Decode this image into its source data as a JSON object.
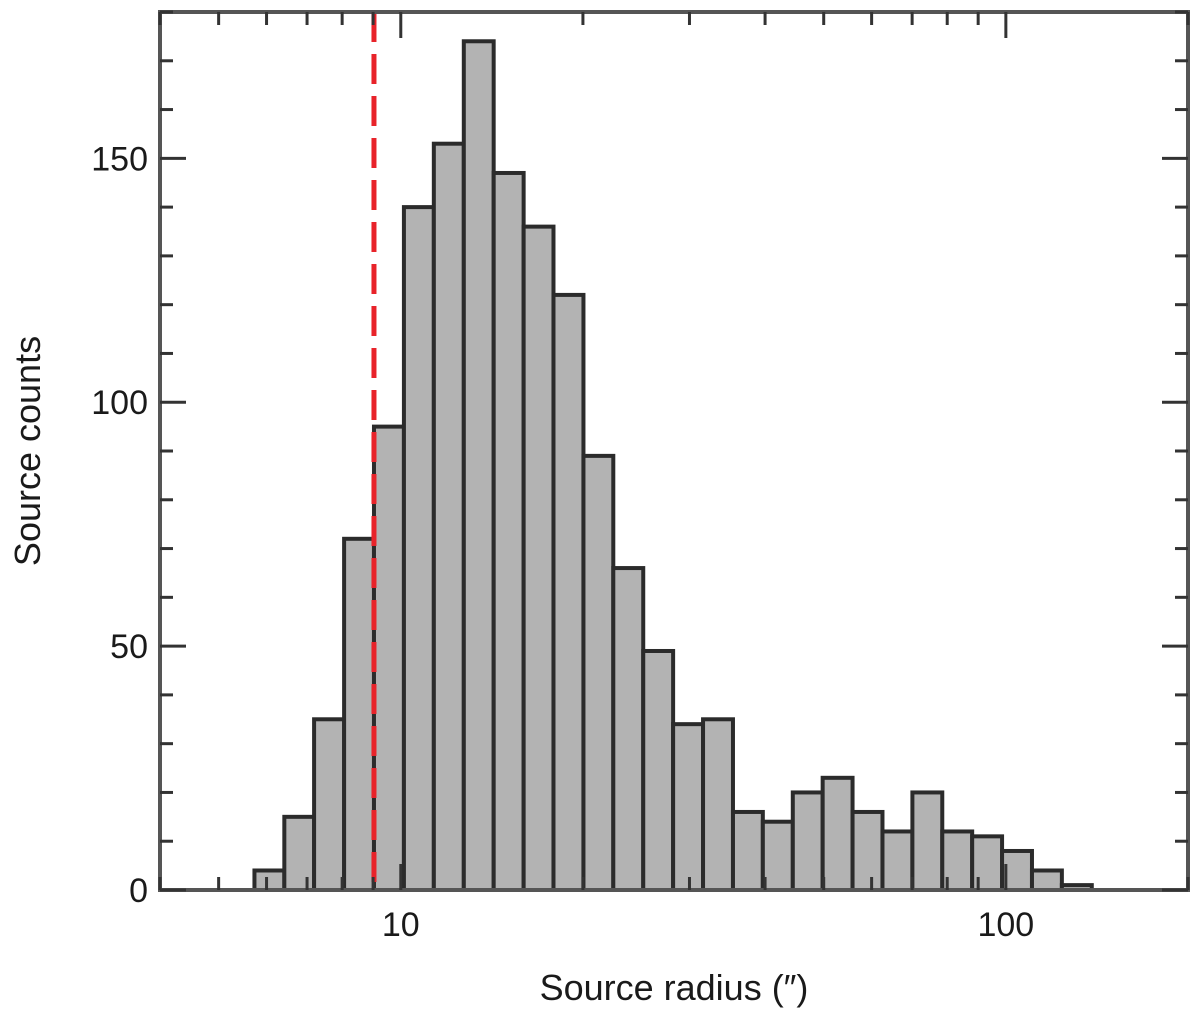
{
  "chart_data": {
    "type": "bar",
    "title": "",
    "xlabel": "Source radius (″)",
    "ylabel": "Source counts",
    "x_scale": "log",
    "xlim": [
      4.0,
      200.0
    ],
    "ylim": [
      0,
      180
    ],
    "x_ticks": [
      {
        "value": 10,
        "label": "10"
      },
      {
        "value": 100,
        "label": "100"
      }
    ],
    "y_ticks": [
      {
        "value": 0,
        "label": "0"
      },
      {
        "value": 50,
        "label": "50"
      },
      {
        "value": 100,
        "label": "100"
      },
      {
        "value": 150,
        "label": "150"
      }
    ],
    "bin_edges": [
      5.73,
      6.42,
      7.19,
      8.06,
      9.03,
      10.12,
      11.34,
      12.71,
      14.24,
      15.96,
      17.88,
      20.04,
      22.45,
      25.16,
      28.19,
      31.59,
      35.4,
      39.66,
      44.45,
      49.8,
      55.8,
      62.53,
      70.07,
      78.51,
      87.97,
      98.57,
      110.45,
      123.76,
      138.68,
      155.4
    ],
    "counts": [
      4,
      15,
      35,
      72,
      95,
      140,
      153,
      174,
      147,
      136,
      122,
      89,
      66,
      49,
      34,
      35,
      16,
      14,
      20,
      23,
      16,
      12,
      20,
      12,
      11,
      8,
      4,
      1,
      0
    ],
    "reference_line": {
      "x": 9.03,
      "color": "#e8232a",
      "style": "dashed"
    },
    "bar_fill": "#b3b3b3",
    "bar_edge": "#2b2b2b",
    "grid": false,
    "legend": "none"
  }
}
